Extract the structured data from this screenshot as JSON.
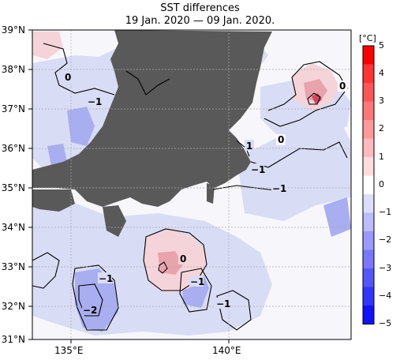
{
  "title": {
    "line1": "SST differences",
    "line2": "19 Jan. 2020 — 09 Jan. 2020."
  },
  "map": {
    "lat_labels": [
      "39°N",
      "38°N",
      "37°N",
      "36°N",
      "35°N",
      "34°N",
      "33°N",
      "32°N",
      "31°N"
    ],
    "lon_labels": [
      "135°E",
      "140°E"
    ],
    "contour_labels": [
      "0",
      "−1",
      "0",
      "0",
      "1",
      "−1",
      "−1",
      "0",
      "−1",
      "−1",
      "−1",
      "−2",
      "−1"
    ],
    "land_color": "#595959",
    "colors": {
      "neutral": "#f7f7fb",
      "neg1": "#d9dcf5",
      "neg2": "#a9aef0",
      "pos1": "#f5d4d9",
      "pos2": "#e8a3ad",
      "pos3": "#cf4a5e"
    }
  },
  "colorbar": {
    "unit": "[°C]",
    "ticks": [
      "5",
      "4",
      "3",
      "2",
      "1",
      "0",
      "−1",
      "−2",
      "−3",
      "−4",
      "−5"
    ],
    "colors_top_to_bottom": [
      "#ff0000",
      "#ff3333",
      "#ff5555",
      "#ff7777",
      "#ff9999",
      "#ffbbbb",
      "#ffdddd",
      "#ffffff",
      "#ddddff",
      "#bbbbff",
      "#9999ff",
      "#7777ff",
      "#5555ff",
      "#3333ff",
      "#1111ff"
    ]
  }
}
